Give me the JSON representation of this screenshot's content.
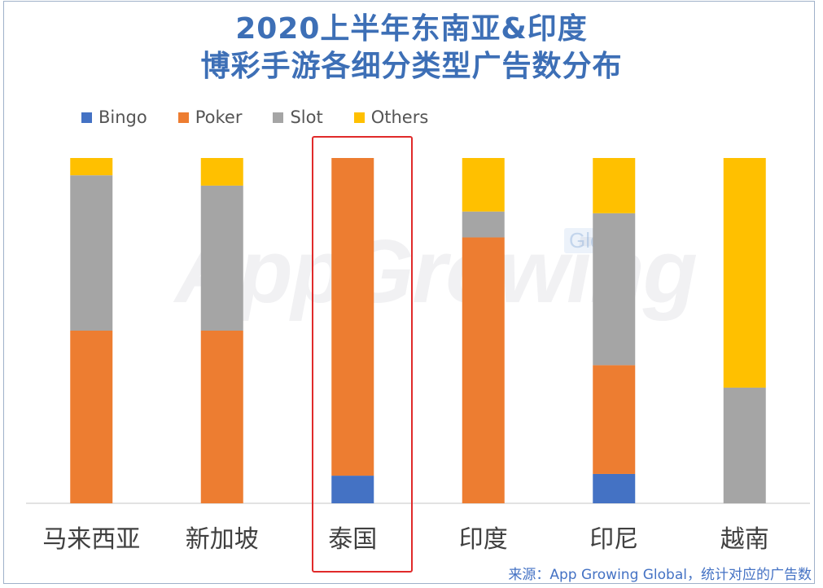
{
  "title_lines": [
    "2020上半年东南亚&印度",
    "博彩手游各细分类型广告数分布"
  ],
  "source": "来源：App Growing Global，统计对应的广告数",
  "watermark": {
    "text": "AppGrowing",
    "badge": "Global"
  },
  "colors": {
    "Bingo": "#4472c4",
    "Poker": "#ed7d31",
    "Slot": "#a5a5a5",
    "Others": "#ffc000",
    "highlight": "#e02a2a"
  },
  "chart_data": {
    "type": "bar",
    "stacked": true,
    "percent": true,
    "categories": [
      "马来西亚",
      "新加坡",
      "泰国",
      "印度",
      "印尼",
      "越南"
    ],
    "series": [
      {
        "name": "Bingo",
        "values": [
          0,
          0,
          8,
          0,
          8.5,
          0
        ]
      },
      {
        "name": "Poker",
        "values": [
          50,
          50,
          92,
          77,
          31.5,
          0
        ]
      },
      {
        "name": "Slot",
        "values": [
          45,
          42,
          0,
          7.5,
          44,
          33.5
        ]
      },
      {
        "name": "Others",
        "values": [
          5,
          8,
          0,
          15.5,
          16,
          66.5
        ]
      }
    ],
    "ylim": [
      0,
      100
    ],
    "legend_position": "top-left",
    "highlighted_category": "泰国"
  }
}
